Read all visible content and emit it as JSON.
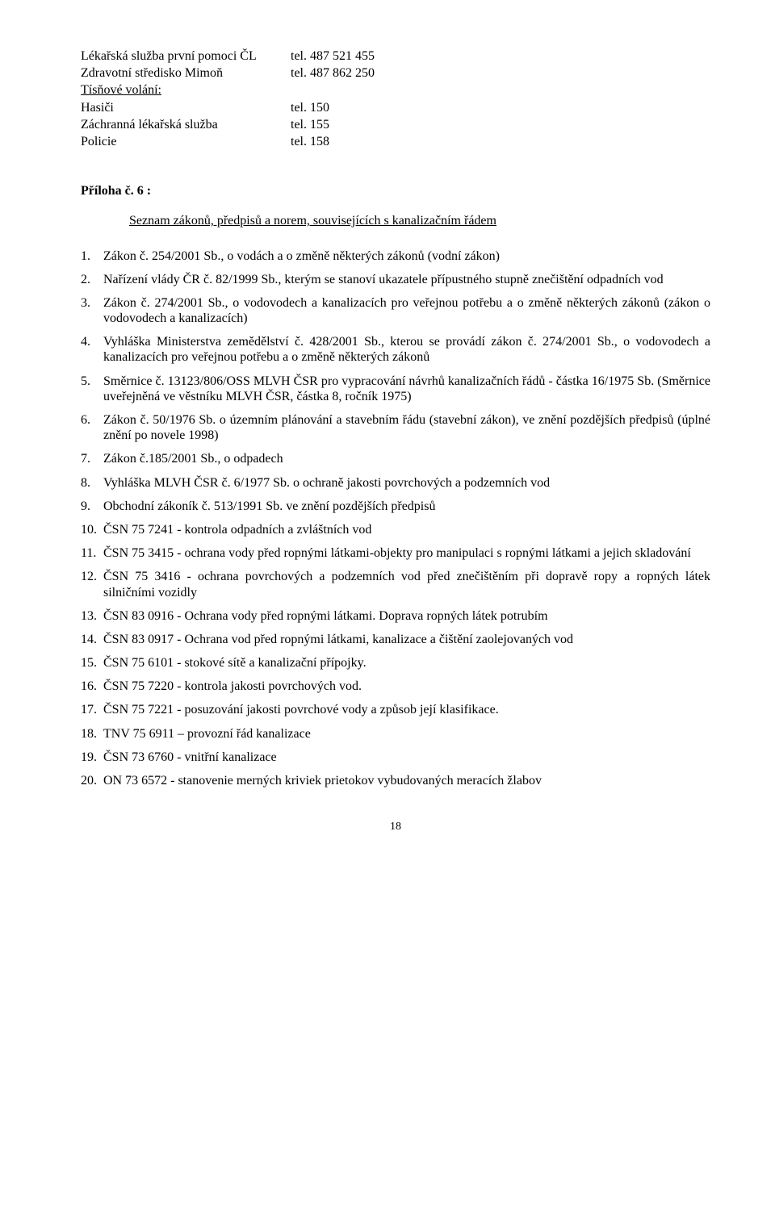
{
  "contacts": [
    {
      "label": "Lékařská služba první pomoci ČL",
      "value": "tel. 487 521 455"
    },
    {
      "label": "Zdravotní středisko Mimoň",
      "value": "tel. 487 862 250"
    }
  ],
  "emergency_heading": "Tísňové volání:",
  "emergency": [
    {
      "label": "Hasiči",
      "value": "tel. 150"
    },
    {
      "label": "Záchranná lékařská služba",
      "value": "tel. 155"
    },
    {
      "label": "Policie",
      "value": "tel. 158"
    }
  ],
  "appendix_heading": "Příloha č. 6 :",
  "appendix_subtitle": "Seznam zákonů,  předpisů  a  norem,  souvisejících  s  kanalizačním  řádem",
  "laws": [
    "Zákon č. 254/2001 Sb.,  o vodách a  o změně  některých  zákonů (vodní zákon)",
    "Nařízení vlády ČR č. 82/1999  Sb., kterým se stanoví ukazatele přípustného stupně znečištění  odpadních vod",
    "Zákon č. 274/2001 Sb.,  o vodovodech  a kanalizacích pro  veřejnou potřebu  a  o  změně  některých  zákonů (zákon  o vodovodech a  kanalizacích)",
    "Vyhláška Ministerstva zemědělství č. 428/2001 Sb., kterou se provádí zákon č. 274/2001 Sb., o vodovodech a kanalizacích pro  veřejnou potřebu  a  o  změně některých  zákonů",
    "Směrnice č. 13123/806/OSS MLVH ČSR pro vypracování návrhů kanalizačních řádů - částka 16/1975 Sb. (Směrnice uveřejněná ve věstníku MLVH ČSR, částka 8, ročník 1975)",
    "Zákon č. 50/1976 Sb. o  územním plánování a stavebním řádu (stavební zákon), ve znění pozdějších předpisů (úplné znění po novele 1998)",
    "Zákon č.185/2001 Sb.,  o odpadech",
    "Vyhláška MLVH ČSR č. 6/1977 Sb. o ochraně jakosti povrchových a podzemních vod",
    "Obchodní zákoník  č. 513/1991 Sb. ve znění pozdějších předpisů",
    "ČSN 75 7241 - kontrola odpadních a zvláštních vod",
    "ČSN 75 3415 - ochrana vody před ropnými látkami-objekty pro manipulaci s ropnými látkami a jejich skladování",
    "ČSN 75 3416 - ochrana povrchových a podzemních vod před znečištěním při dopravě ropy a ropných látek silničními vozidly",
    "ČSN 83 0916 - Ochrana vody před ropnými látkami. Doprava ropných látek potrubím",
    "ČSN 83 0917 - Ochrana vod před ropnými látkami, kanalizace a čištění zaolejovaných vod",
    "ČSN 75 6101 - stokové sítě a kanalizační přípojky.",
    "ČSN 75 7220 - kontrola jakosti povrchových vod.",
    "ČSN 75 7221 - posuzování jakosti povrchové vody a způsob její klasifikace.",
    "TNV 75 6911 – provozní řád kanalizace",
    "ČSN 73 6760 - vnitřní kanalizace",
    "ON 73 6572 - stanovenie merných kriviek prietokov vybudovaných meracích žlabov"
  ],
  "page_number": "18"
}
